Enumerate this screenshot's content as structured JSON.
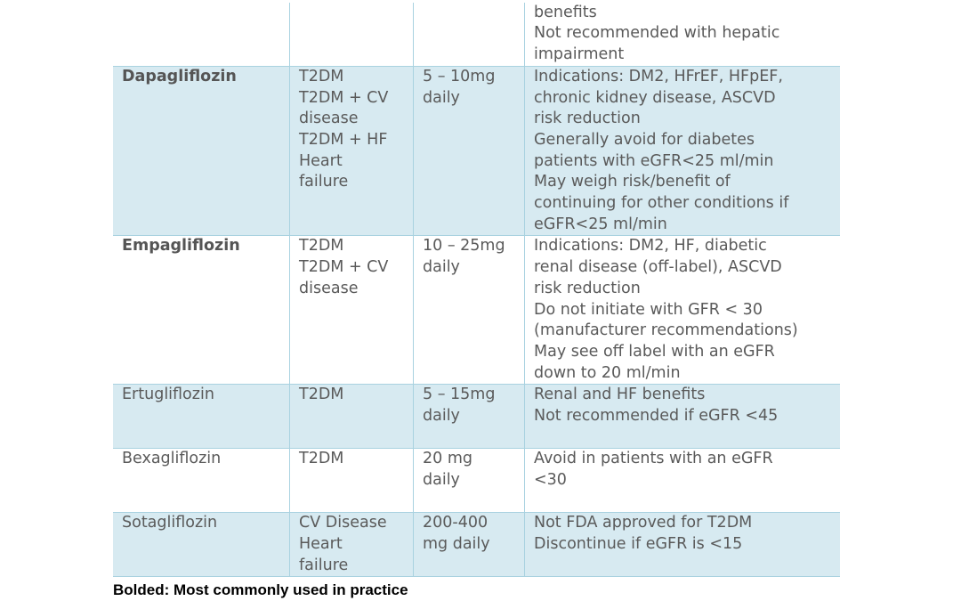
{
  "table": {
    "rows": [
      {
        "cells": [
          [],
          [],
          [],
          [
            "benefits",
            "Not recommended with hepatic",
            "impairment"
          ]
        ]
      },
      {
        "emphasis": true,
        "cells": [
          [
            "Dapagliflozin"
          ],
          [
            "T2DM",
            "T2DM + CV",
            "disease",
            "T2DM + HF",
            "Heart",
            "failure"
          ],
          [
            "5 – 10mg",
            "daily"
          ],
          [
            "Indications: DM2, HFrEF, HFpEF,",
            "chronic kidney disease, ASCVD",
            "risk reduction",
            "Generally avoid for diabetes",
            "patients with eGFR<25 ml/min",
            "May weigh risk/benefit of",
            "continuing for other conditions if",
            "eGFR<25 ml/min"
          ]
        ]
      },
      {
        "emphasis": true,
        "cells": [
          [
            "Empagliflozin"
          ],
          [
            "T2DM",
            "T2DM + CV",
            "disease"
          ],
          [
            "10 – 25mg",
            "daily"
          ],
          [
            "Indications: DM2, HF, diabetic",
            "renal disease (off-label), ASCVD",
            "risk reduction",
            "Do not initiate with GFR < 30",
            "(manufacturer recommendations)",
            "May see off label with an eGFR",
            "down to 20 ml/min"
          ]
        ]
      },
      {
        "cells": [
          [
            "Ertugliflozin"
          ],
          [
            "T2DM"
          ],
          [
            "5 – 15mg",
            "daily"
          ],
          [
            "Renal and HF benefits",
            "Not recommended if eGFR <45"
          ]
        ]
      },
      {
        "cells": [
          [
            "Bexagliflozin"
          ],
          [
            "T2DM"
          ],
          [
            "20 mg",
            "daily"
          ],
          [
            "Avoid in patients with an eGFR",
            "<30"
          ]
        ]
      },
      {
        "cells": [
          [
            "Sotagliflozin"
          ],
          [
            "CV Disease",
            "Heart",
            "failure"
          ],
          [
            "200-400",
            "mg daily"
          ],
          [
            "Not FDA approved for T2DM",
            "Discontinue if eGFR is <15"
          ]
        ]
      }
    ]
  },
  "footnote": "Bolded: Most commonly used in practice"
}
